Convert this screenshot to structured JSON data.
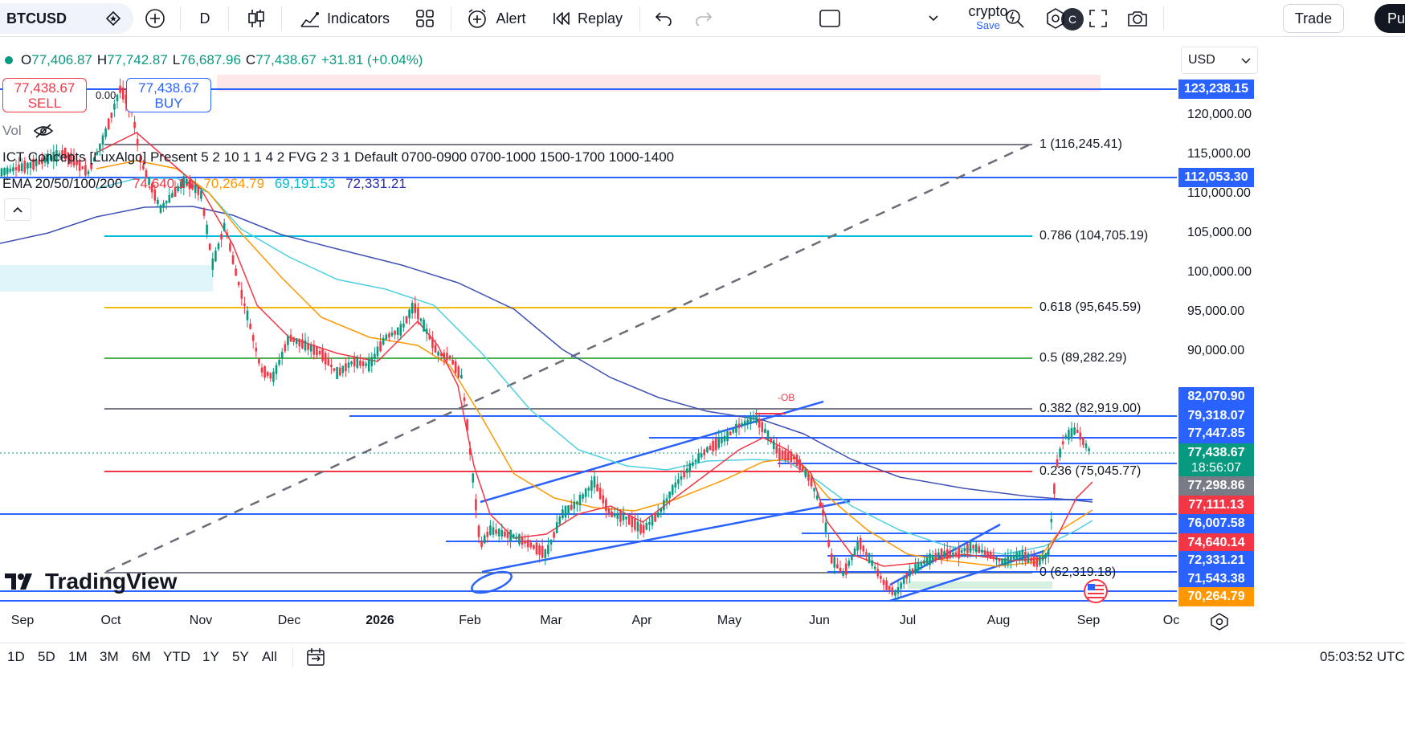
{
  "toolbar": {
    "symbol": "BTCUSD",
    "interval": "D",
    "indicators_label": "Indicators",
    "alert_label": "Alert",
    "replay_label": "Replay",
    "layout_name": "crypto",
    "layout_save": "Save",
    "avatar_letter": "C",
    "trade_label": "Trade",
    "publish_label": "Pu"
  },
  "legend": {
    "o_key": "O",
    "o": "77,406.87",
    "h_key": "H",
    "h": "77,742.87",
    "l_key": "L",
    "l": "76,687.96",
    "c_key": "C",
    "c": "77,438.67",
    "change": "+31.81 (+0.04%)"
  },
  "trade": {
    "sell_price": "77,438.67",
    "sell_label": "SELL",
    "buy_price": "77,438.67",
    "buy_label": "BUY",
    "spread": "0.00"
  },
  "indicators": {
    "vol_label": "Vol",
    "ict_text": "ICT Concepts [LuxAlgo] Present 5 2 10 1 1 4 2 FVG 2 3 1 Default 0700-0900 0700-1000 1500-1700 1000-1400",
    "ema_label": "EMA 20/50/100/200",
    "ema20": "74,640.14",
    "ema50": "70,264.79",
    "ema100": "69,191.53",
    "ema200": "72,331.21"
  },
  "fib_levels": [
    {
      "label": "1 (116,245.41)",
      "color": "#787b86"
    },
    {
      "label": "0.786 (104,705.19)",
      "color": "#00bcd4"
    },
    {
      "label": "0.618 (95,645.59)",
      "color": "#f0b90b"
    },
    {
      "label": "0.5 (89,282.29)",
      "color": "#4caf50"
    },
    {
      "label": "0.382 (82,919.00)",
      "color": "#787b86"
    },
    {
      "label": "0.236 (75,045.77)",
      "color": "#f23645"
    },
    {
      "label": "0 (62,319.18)",
      "color": "#787b86"
    }
  ],
  "ob_label": "-OB",
  "watermark": "TradingView",
  "price_axis": {
    "currency": "USD",
    "ticks": [
      "120,000.00",
      "115,000.00",
      "110,000.00",
      "105,000.00",
      "100,000.00",
      "95,000.00",
      "90,000.00"
    ],
    "badges": [
      {
        "text": "123,238.15",
        "color": "#2962ff"
      },
      {
        "text": "112,053.30",
        "color": "#2962ff"
      },
      {
        "text": "82,070.90",
        "color": "#2962ff"
      },
      {
        "text": "79,318.07",
        "color": "#2962ff"
      },
      {
        "text": "77,447.85",
        "color": "#2962ff"
      },
      {
        "text": "77,438.67",
        "color": "#089981"
      },
      {
        "text": "77,298.86",
        "color": "#787b86"
      },
      {
        "text": "77,111.13",
        "color": "#f23645"
      },
      {
        "text": "76,007.58",
        "color": "#2962ff"
      },
      {
        "text": "74,640.14",
        "color": "#f23645"
      },
      {
        "text": "72,331.21",
        "color": "#2962ff"
      },
      {
        "text": "71,543.38",
        "color": "#2962ff"
      },
      {
        "text": "70,264.79",
        "color": "#ff9800"
      }
    ],
    "countdown": "18:56:07"
  },
  "time_axis": [
    "Sep",
    "Oct",
    "Nov",
    "Dec",
    "2026",
    "Feb",
    "Mar",
    "Apr",
    "May",
    "Jun",
    "Jul",
    "Aug",
    "Sep",
    "Oc"
  ],
  "ranges": [
    "1D",
    "5D",
    "1M",
    "3M",
    "6M",
    "YTD",
    "1Y",
    "5Y",
    "All"
  ],
  "clock": "05:03:52 UTC"
}
